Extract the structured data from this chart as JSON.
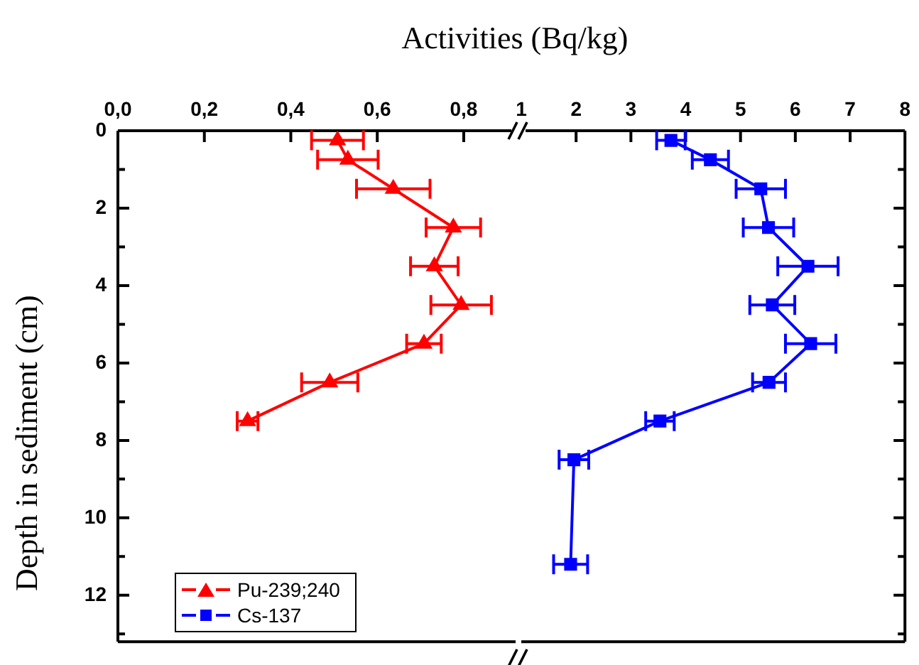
{
  "chart_data": [
    {
      "type": "line",
      "xlabel": "Activities (Bq/kg)",
      "ylabel": "Depth in sediment (cm)",
      "xlim": [
        0,
        0.92
      ],
      "xticks": [
        {
          "value": 0,
          "label": "0,0"
        },
        {
          "value": 0.2,
          "label": "0,2"
        },
        {
          "value": 0.4,
          "label": "0,4"
        },
        {
          "value": 0.6,
          "label": "0,6"
        },
        {
          "value": 0.8,
          "label": "0,8"
        }
      ],
      "ylim": [
        13.2,
        0
      ],
      "yticks": [
        0,
        {
          "value": 1,
          "label": null
        },
        2,
        {
          "value": 3,
          "label": null
        },
        4,
        {
          "value": 5,
          "label": null
        },
        6,
        {
          "value": 7,
          "label": null
        },
        8,
        {
          "value": 9,
          "label": null
        },
        10,
        {
          "value": 11,
          "label": null
        },
        12,
        {
          "value": 13,
          "label": null
        }
      ],
      "grid": false,
      "legend": "bottom left",
      "series": [
        {
          "name": "Pu-239;240",
          "color": "#ff0000",
          "marker": "triangle",
          "x": [
            0.508,
            0.532,
            0.637,
            0.776,
            0.732,
            0.794,
            0.708,
            0.49,
            0.3
          ],
          "values": [
            0.25,
            0.75,
            1.5,
            2.5,
            3.5,
            4.5,
            5.5,
            6.5,
            7.5
          ],
          "xerrors": [
            0.06,
            0.07,
            0.085,
            0.063,
            0.055,
            0.07,
            0.04,
            0.065,
            0.024
          ]
        }
      ]
    },
    {
      "type": "line",
      "xlim": [
        1,
        8
      ],
      "xticks": [
        1,
        2,
        3,
        4,
        5,
        6,
        7,
        8
      ],
      "ylim": [
        13.2,
        0
      ],
      "yticks": [
        0,
        {
          "value": 1,
          "label": null
        },
        2,
        {
          "value": 3,
          "label": null
        },
        4,
        {
          "value": 5,
          "label": null
        },
        6,
        {
          "value": 7,
          "label": null
        },
        8,
        {
          "value": 9,
          "label": null
        },
        10,
        {
          "value": 11,
          "label": null
        },
        12,
        {
          "value": 13,
          "label": null
        }
      ],
      "tick_labels": "x",
      "grid": false,
      "series": [
        {
          "name": "Cs-137",
          "color": "#0000ff",
          "marker": "square",
          "x": [
            3.73,
            4.45,
            5.37,
            5.51,
            6.23,
            5.58,
            6.28,
            5.52,
            3.53,
            1.96,
            1.9
          ],
          "values": [
            0.25,
            0.75,
            1.5,
            2.5,
            3.5,
            4.5,
            5.5,
            6.5,
            7.5,
            8.5,
            11.2
          ],
          "xerrors": [
            0.26,
            0.33,
            0.45,
            0.46,
            0.55,
            0.41,
            0.46,
            0.3,
            0.26,
            0.27,
            0.31
          ]
        }
      ]
    }
  ]
}
